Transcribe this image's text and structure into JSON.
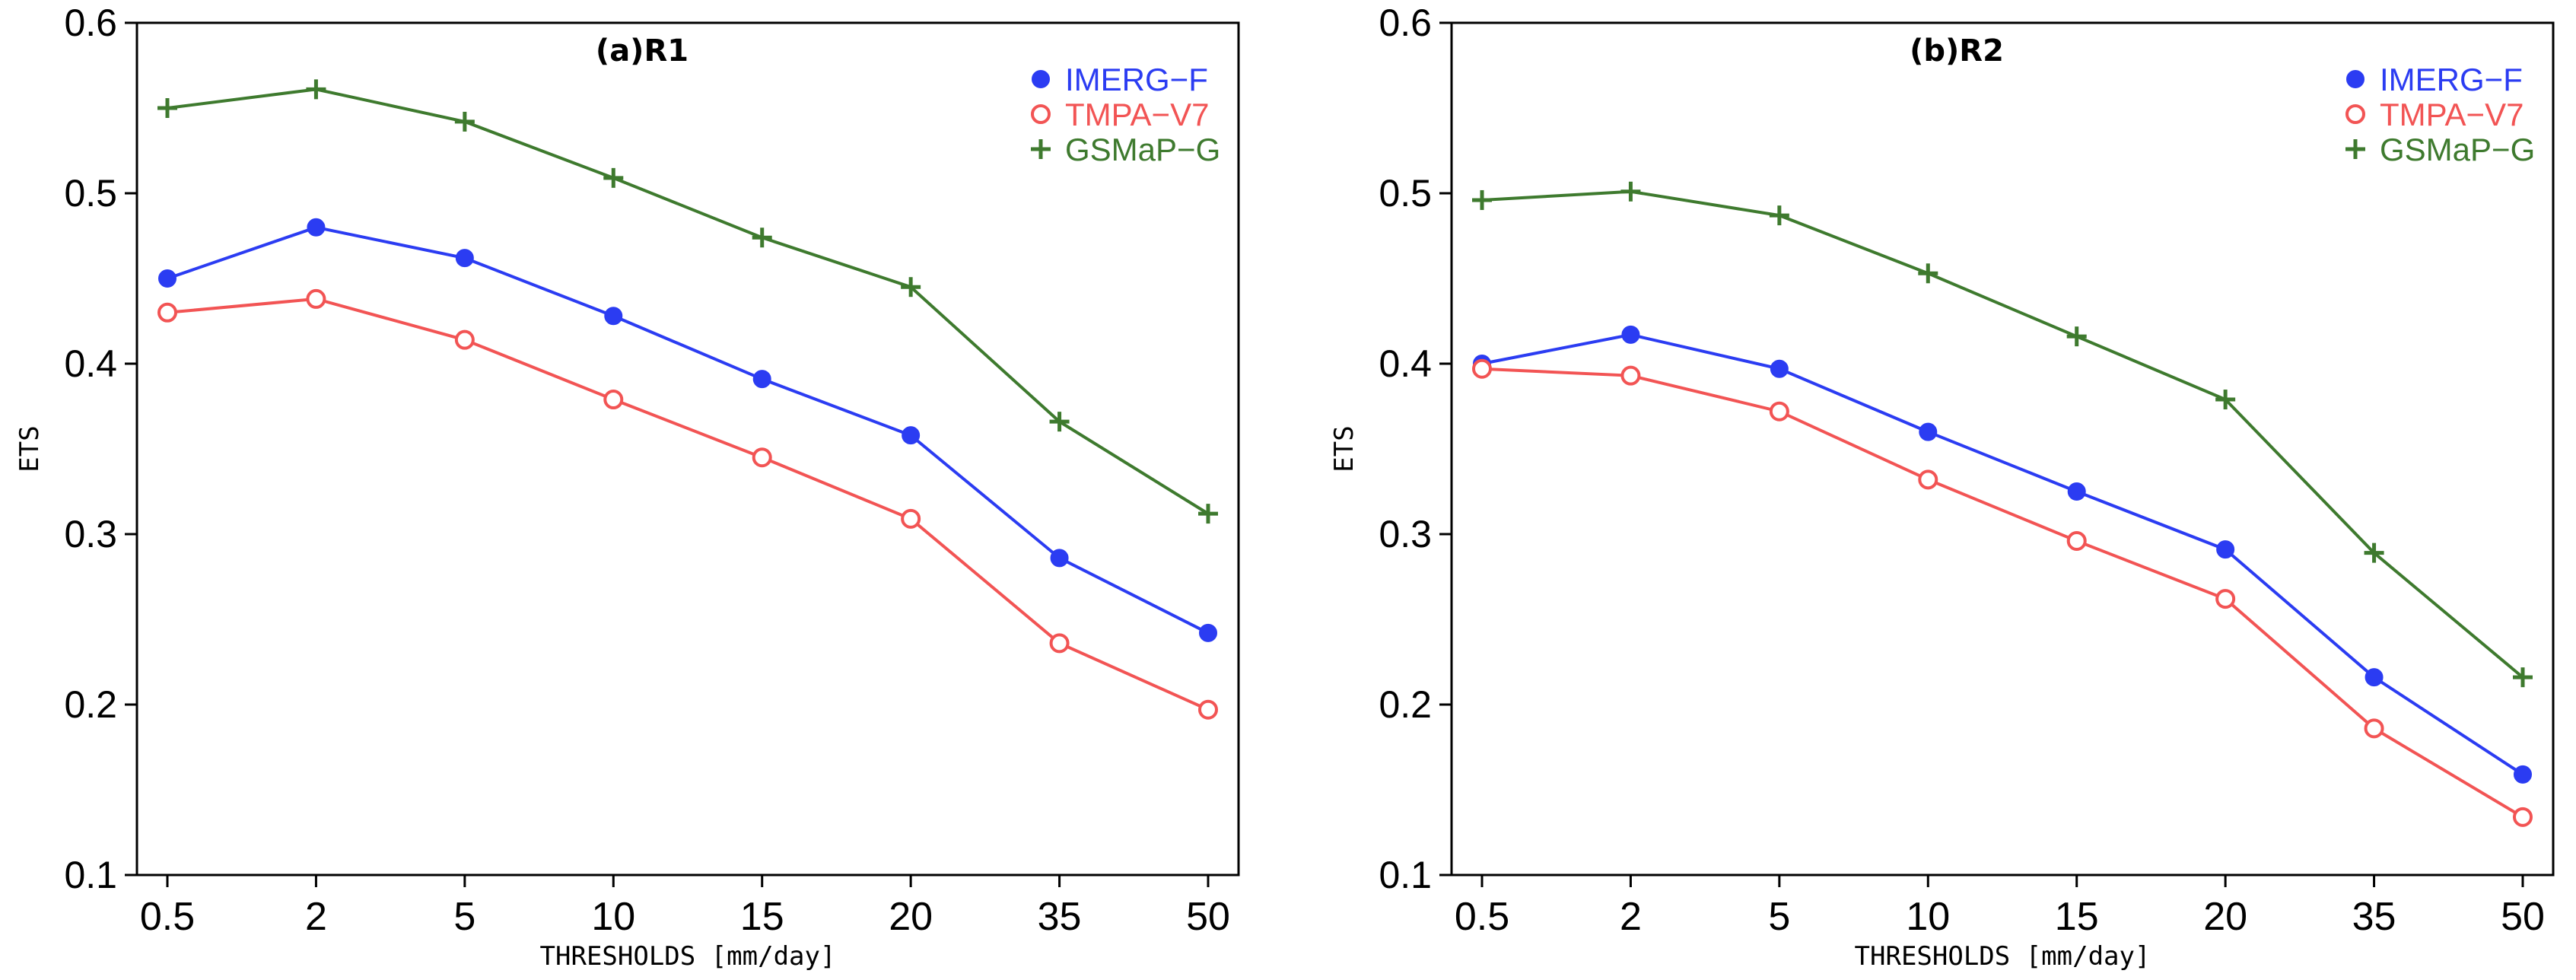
{
  "chart_data": [
    {
      "type": "line",
      "title": "(a)R1",
      "xlabel": "THRESHOLDS [mm/day]",
      "ylabel": "ETS",
      "categories": [
        "0.5",
        "2",
        "5",
        "10",
        "15",
        "20",
        "35",
        "50"
      ],
      "ylim": [
        0.1,
        0.6
      ],
      "yticks": [
        "0.1",
        "0.2",
        "0.3",
        "0.4",
        "0.5",
        "0.6"
      ],
      "legend_position": "top-right",
      "series": [
        {
          "name": "IMERG−F",
          "color": "#2b3cf2",
          "marker": "filled-circle",
          "values": [
            0.45,
            0.48,
            0.462,
            0.428,
            0.391,
            0.358,
            0.286,
            0.242
          ]
        },
        {
          "name": "TMPA−V7",
          "color": "#f25454",
          "marker": "open-circle",
          "values": [
            0.43,
            0.438,
            0.414,
            0.379,
            0.345,
            0.309,
            0.236,
            0.197
          ]
        },
        {
          "name": "GSMaP−G",
          "color": "#3e7a2e",
          "marker": "plus",
          "values": [
            0.55,
            0.561,
            0.542,
            0.509,
            0.474,
            0.445,
            0.366,
            0.312
          ]
        }
      ]
    },
    {
      "type": "line",
      "title": "(b)R2",
      "xlabel": "THRESHOLDS [mm/day]",
      "ylabel": "ETS",
      "categories": [
        "0.5",
        "2",
        "5",
        "10",
        "15",
        "20",
        "35",
        "50"
      ],
      "ylim": [
        0.1,
        0.6
      ],
      "yticks": [
        "0.1",
        "0.2",
        "0.3",
        "0.4",
        "0.5",
        "0.6"
      ],
      "legend_position": "top-right",
      "series": [
        {
          "name": "IMERG−F",
          "color": "#2b3cf2",
          "marker": "filled-circle",
          "values": [
            0.4,
            0.417,
            0.397,
            0.36,
            0.325,
            0.291,
            0.216,
            0.159
          ]
        },
        {
          "name": "TMPA−V7",
          "color": "#f25454",
          "marker": "open-circle",
          "values": [
            0.397,
            0.393,
            0.372,
            0.332,
            0.296,
            0.262,
            0.186,
            0.134
          ]
        },
        {
          "name": "GSMaP−G",
          "color": "#3e7a2e",
          "marker": "plus",
          "values": [
            0.496,
            0.501,
            0.487,
            0.453,
            0.416,
            0.379,
            0.289,
            0.216
          ]
        }
      ]
    }
  ]
}
